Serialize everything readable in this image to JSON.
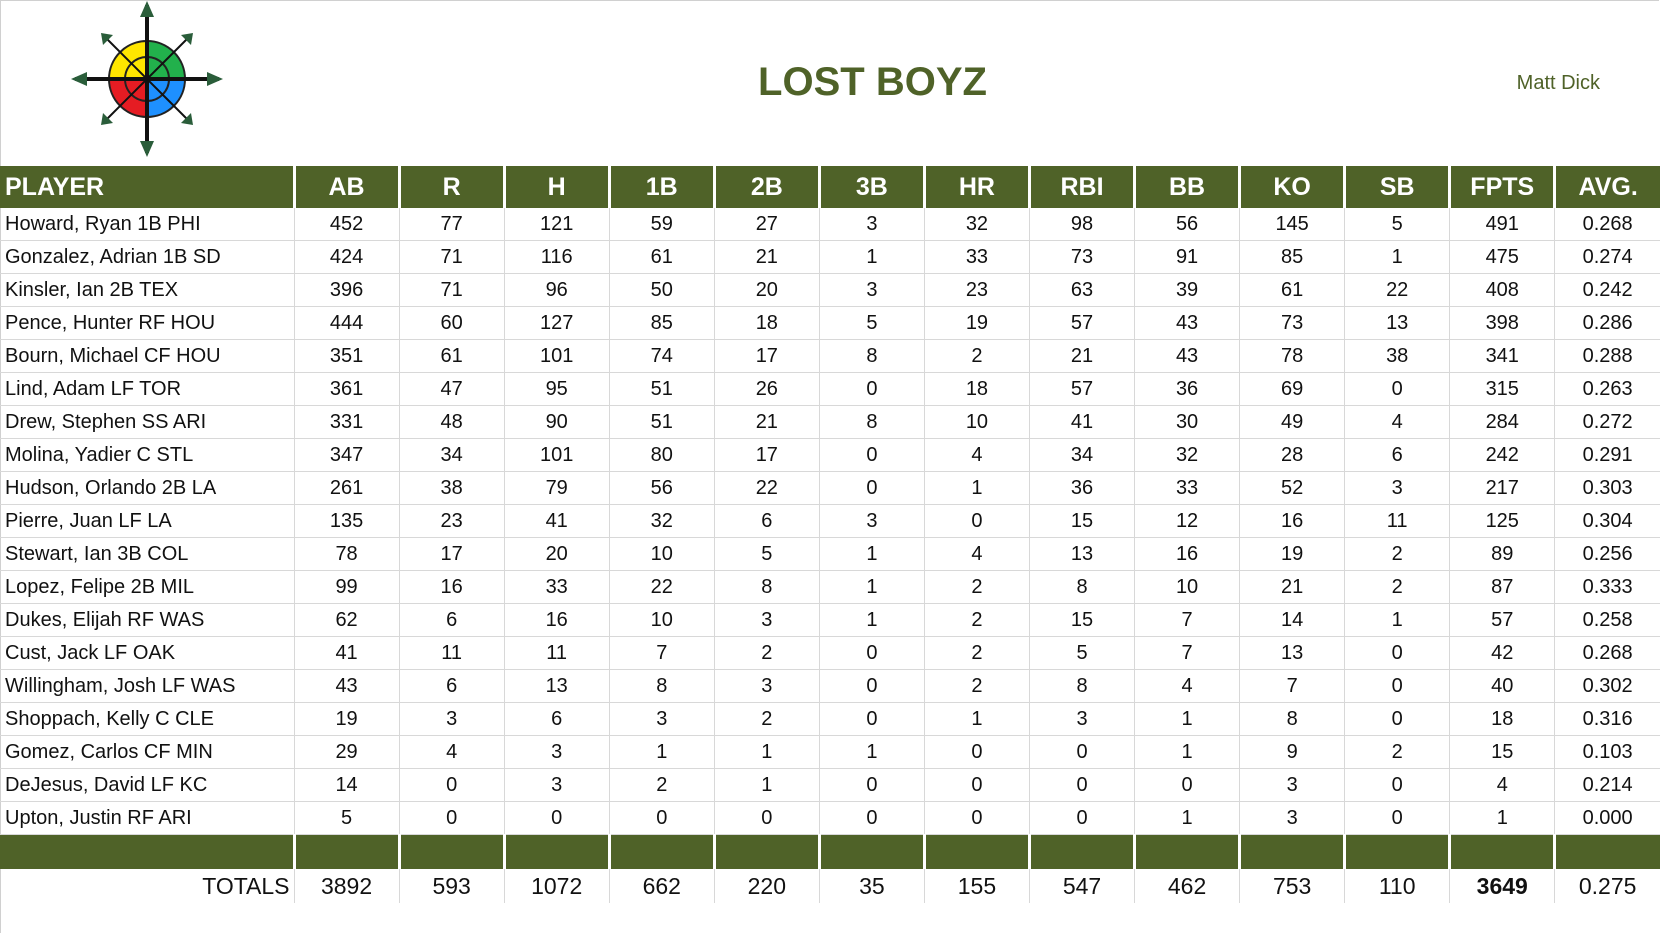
{
  "header": {
    "title": "LOST BOYZ",
    "owner": "Matt Dick"
  },
  "table": {
    "columns": [
      "PLAYER",
      "AB",
      "R",
      "H",
      "1B",
      "2B",
      "3B",
      "HR",
      "RBI",
      "BB",
      "KO",
      "SB",
      "FPTS",
      "AVG."
    ],
    "rows": [
      [
        "Howard, Ryan 1B PHI",
        "452",
        "77",
        "121",
        "59",
        "27",
        "3",
        "32",
        "98",
        "56",
        "145",
        "5",
        "491",
        "0.268"
      ],
      [
        "Gonzalez, Adrian 1B SD",
        "424",
        "71",
        "116",
        "61",
        "21",
        "1",
        "33",
        "73",
        "91",
        "85",
        "1",
        "475",
        "0.274"
      ],
      [
        "Kinsler, Ian 2B TEX",
        "396",
        "71",
        "96",
        "50",
        "20",
        "3",
        "23",
        "63",
        "39",
        "61",
        "22",
        "408",
        "0.242"
      ],
      [
        "Pence, Hunter RF HOU",
        "444",
        "60",
        "127",
        "85",
        "18",
        "5",
        "19",
        "57",
        "43",
        "73",
        "13",
        "398",
        "0.286"
      ],
      [
        "Bourn, Michael CF HOU",
        "351",
        "61",
        "101",
        "74",
        "17",
        "8",
        "2",
        "21",
        "43",
        "78",
        "38",
        "341",
        "0.288"
      ],
      [
        "Lind, Adam LF TOR",
        "361",
        "47",
        "95",
        "51",
        "26",
        "0",
        "18",
        "57",
        "36",
        "69",
        "0",
        "315",
        "0.263"
      ],
      [
        "Drew, Stephen SS ARI",
        "331",
        "48",
        "90",
        "51",
        "21",
        "8",
        "10",
        "41",
        "30",
        "49",
        "4",
        "284",
        "0.272"
      ],
      [
        "Molina, Yadier C STL",
        "347",
        "34",
        "101",
        "80",
        "17",
        "0",
        "4",
        "34",
        "32",
        "28",
        "6",
        "242",
        "0.291"
      ],
      [
        "Hudson, Orlando 2B LA",
        "261",
        "38",
        "79",
        "56",
        "22",
        "0",
        "1",
        "36",
        "33",
        "52",
        "3",
        "217",
        "0.303"
      ],
      [
        "Pierre, Juan LF LA",
        "135",
        "23",
        "41",
        "32",
        "6",
        "3",
        "0",
        "15",
        "12",
        "16",
        "11",
        "125",
        "0.304"
      ],
      [
        "Stewart, Ian 3B COL",
        "78",
        "17",
        "20",
        "10",
        "5",
        "1",
        "4",
        "13",
        "16",
        "19",
        "2",
        "89",
        "0.256"
      ],
      [
        "Lopez, Felipe 2B MIL",
        "99",
        "16",
        "33",
        "22",
        "8",
        "1",
        "2",
        "8",
        "10",
        "21",
        "2",
        "87",
        "0.333"
      ],
      [
        "Dukes, Elijah RF WAS",
        "62",
        "6",
        "16",
        "10",
        "3",
        "1",
        "2",
        "15",
        "7",
        "14",
        "1",
        "57",
        "0.258"
      ],
      [
        "Cust, Jack LF OAK",
        "41",
        "11",
        "11",
        "7",
        "2",
        "0",
        "2",
        "5",
        "7",
        "13",
        "0",
        "42",
        "0.268"
      ],
      [
        "Willingham, Josh LF WAS",
        "43",
        "6",
        "13",
        "8",
        "3",
        "0",
        "2",
        "8",
        "4",
        "7",
        "0",
        "40",
        "0.302"
      ],
      [
        "Shoppach, Kelly C CLE",
        "19",
        "3",
        "6",
        "3",
        "2",
        "0",
        "1",
        "3",
        "1",
        "8",
        "0",
        "18",
        "0.316"
      ],
      [
        "Gomez, Carlos CF MIN",
        "29",
        "4",
        "3",
        "1",
        "1",
        "1",
        "0",
        "0",
        "1",
        "9",
        "2",
        "15",
        "0.103"
      ],
      [
        "DeJesus, David LF KC",
        "14",
        "0",
        "3",
        "2",
        "1",
        "0",
        "0",
        "0",
        "0",
        "3",
        "0",
        "4",
        "0.214"
      ],
      [
        "Upton, Justin RF ARI",
        "5",
        "0",
        "0",
        "0",
        "0",
        "0",
        "0",
        "0",
        "1",
        "3",
        "0",
        "1",
        "0.000"
      ]
    ],
    "totals": [
      "TOTALS",
      "3892",
      "593",
      "1072",
      "662",
      "220",
      "35",
      "155",
      "547",
      "462",
      "753",
      "110",
      "3649",
      "0.275"
    ]
  }
}
